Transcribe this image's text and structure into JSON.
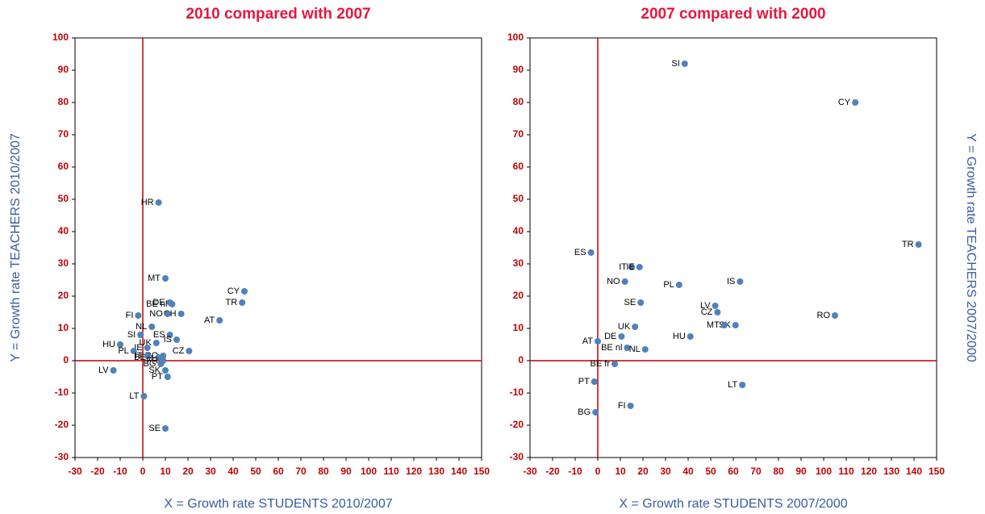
{
  "chart_data": [
    {
      "type": "scatter",
      "title": "2010 compared with 2007",
      "x_label": "X = Growth rate STUDENTS 2010/2007",
      "y_label": "Y = Growth rate TEACHERS 2010/2007",
      "color": "#4f81bd",
      "xlim": [
        -30,
        150
      ],
      "ylim": [
        -30,
        100
      ],
      "xticks": [
        -30,
        -20,
        -10,
        0,
        10,
        20,
        30,
        40,
        50,
        60,
        70,
        80,
        90,
        100,
        110,
        120,
        130,
        140,
        150
      ],
      "yticks": [
        -30,
        -20,
        -10,
        0,
        10,
        20,
        30,
        40,
        50,
        60,
        70,
        80,
        90,
        100
      ],
      "labels": [
        "HR",
        "MT",
        "DE",
        "BE nl",
        "CY",
        "TR",
        "AT",
        "CH",
        "NO",
        "FI",
        "NL",
        "SI",
        "ES",
        "IS",
        "UK",
        "HU",
        "IE",
        "PL",
        "CZ",
        "RO",
        "BE fr",
        "IT",
        "FR",
        "BG",
        "SK",
        "PT",
        "LV",
        "LT",
        "SE"
      ],
      "x": [
        7,
        10,
        12,
        13,
        45,
        44,
        34,
        17,
        11,
        -2,
        4,
        -1,
        12,
        15,
        6,
        -10,
        2,
        -4,
        20.5,
        9,
        7,
        2,
        9,
        8,
        10,
        11,
        -13,
        0.5,
        10
      ],
      "y": [
        49,
        25.5,
        18,
        17.5,
        21.5,
        18,
        12.5,
        14.5,
        14.5,
        14,
        10.5,
        8,
        8,
        6.5,
        5.5,
        5,
        4,
        3,
        3,
        1.5,
        1,
        1.5,
        0,
        -1,
        -3,
        -5,
        -3,
        -11,
        -21
      ]
    },
    {
      "type": "scatter",
      "title": "2007 compared with 2000",
      "x_label": "X = Growth rate STUDENTS 2007/2000",
      "y_label": "Y = Growth rate TEACHERS 2007/2000",
      "color": "#4f81bd",
      "xlim": [
        -30,
        150
      ],
      "ylim": [
        -30,
        100
      ],
      "xticks": [
        -30,
        -20,
        -10,
        0,
        10,
        20,
        30,
        40,
        50,
        60,
        70,
        80,
        90,
        100,
        110,
        120,
        130,
        140,
        150
      ],
      "yticks": [
        -30,
        -20,
        -10,
        0,
        10,
        20,
        30,
        40,
        50,
        60,
        70,
        80,
        90,
        100
      ],
      "labels": [
        "SI",
        "CY",
        "TR",
        "ES",
        "IT",
        "IE",
        "NO",
        "PL",
        "IS",
        "SE",
        "LV",
        "CZ",
        "SK",
        "MT",
        "HU",
        "RO",
        "UK",
        "DE",
        "AT",
        "BE nl",
        "NL",
        "BE fr",
        "PT",
        "LT",
        "FI",
        "BG"
      ],
      "x": [
        38.5,
        114,
        142,
        -3,
        15,
        18.5,
        12,
        36,
        63,
        19,
        52,
        53,
        61,
        56,
        41,
        105,
        16.5,
        10.5,
        0,
        13,
        21,
        7.5,
        -1.5,
        64,
        14.5,
        -1
      ],
      "y": [
        92,
        80,
        36,
        33.5,
        29,
        29,
        24.5,
        23.5,
        24.5,
        18,
        17,
        15,
        11,
        11,
        7.5,
        14,
        10.5,
        7.5,
        6,
        4,
        3.5,
        -1,
        -6.5,
        -7.5,
        -14,
        -16
      ]
    }
  ]
}
